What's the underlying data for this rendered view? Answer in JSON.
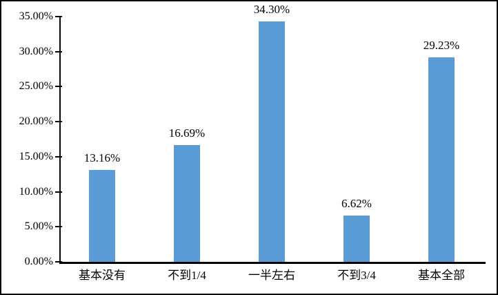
{
  "chart_data": {
    "type": "bar",
    "title": "",
    "xlabel": "",
    "ylabel": "",
    "categories": [
      "基本没有",
      "不到1/4",
      "一半左右",
      "不到3/4",
      "基本全部"
    ],
    "values": [
      13.16,
      16.69,
      34.3,
      6.62,
      29.23
    ],
    "data_labels": [
      "13.16%",
      "16.69%",
      "34.30%",
      "6.62%",
      "29.23%"
    ],
    "ylim": [
      0,
      35
    ],
    "y_tick_values": [
      0,
      5,
      10,
      15,
      20,
      25,
      30,
      35
    ],
    "y_tick_labels": [
      "0.00%",
      "5.00%",
      "10.00%",
      "15.00%",
      "20.00%",
      "25.00%",
      "30.00%",
      "35.00%"
    ],
    "grid": "off",
    "legend": "none",
    "bar_color": "#5B9BD5",
    "axis_color": "#000000",
    "frame_border_color": "#000000"
  }
}
